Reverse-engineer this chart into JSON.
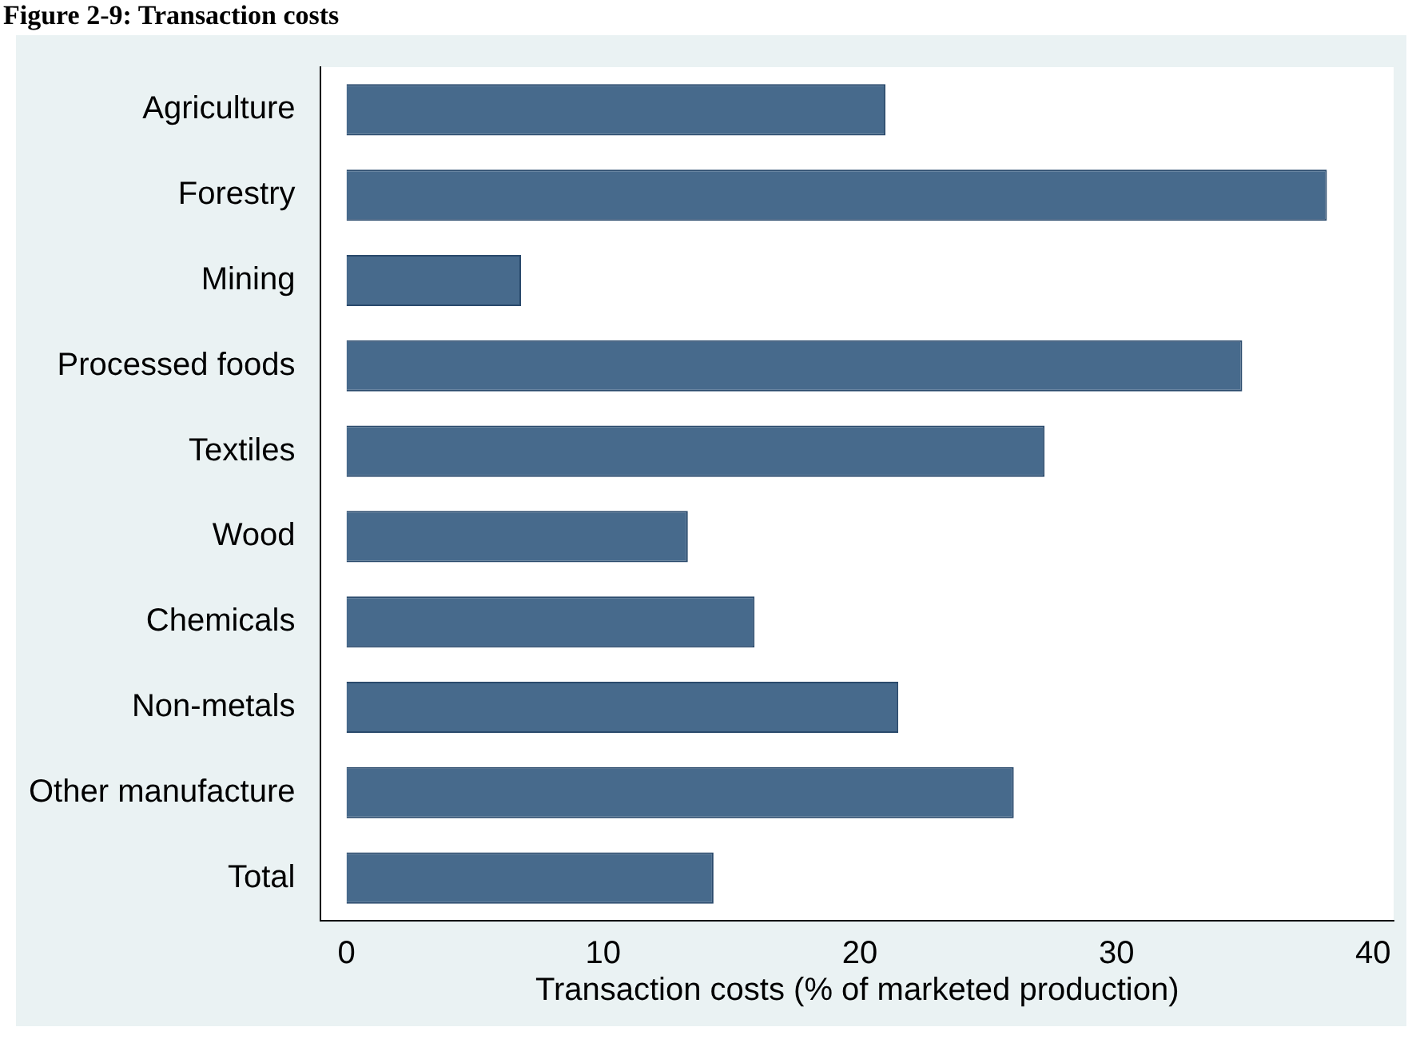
{
  "chart_data": {
    "type": "bar",
    "orientation": "horizontal",
    "title": "Figure 2-9: Transaction costs",
    "xlabel": "Transaction costs (% of marketed production)",
    "categories": [
      "Agriculture",
      "Forestry",
      "Mining",
      "Processed foods",
      "Textiles",
      "Wood",
      "Chemicals",
      "Non-metals",
      "Other manufacture",
      "Total"
    ],
    "values": [
      21.0,
      38.2,
      6.8,
      34.9,
      27.2,
      13.3,
      15.9,
      21.5,
      26.0,
      14.3
    ],
    "color": "#476a8c",
    "xlim": [
      -1,
      40.8
    ],
    "xticks": [
      0,
      10,
      20,
      30,
      40
    ],
    "grid": false,
    "legend": false
  }
}
